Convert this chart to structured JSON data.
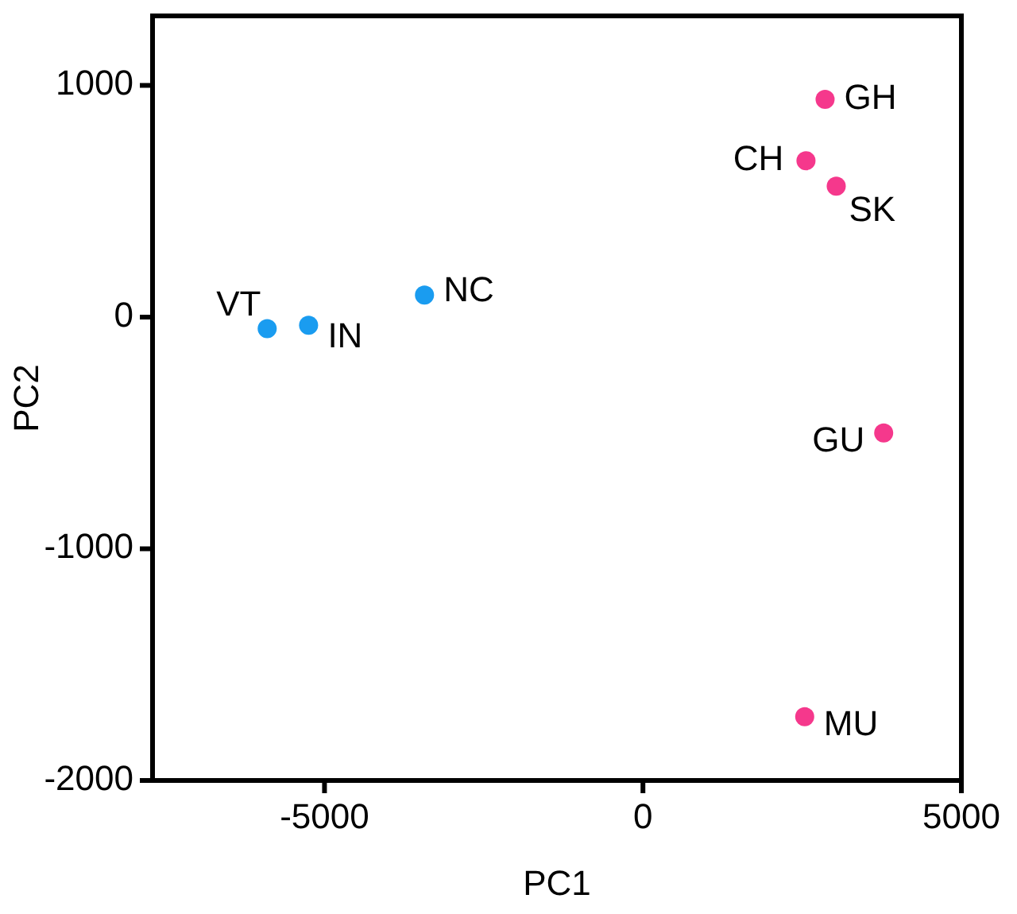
{
  "chart_data": {
    "type": "scatter",
    "xlabel": "PC1",
    "ylabel": "PC2",
    "xlim": [
      -7700,
      5000
    ],
    "ylim": [
      -2000,
      1300
    ],
    "xticks": [
      -5000,
      0,
      5000
    ],
    "yticks": [
      -2000,
      -1000,
      0,
      1000
    ],
    "marker": "circle",
    "series": [
      {
        "color": "#1a9cf0",
        "x": [
          -5900,
          -5250,
          -3430
        ],
        "values": [
          -50,
          -35,
          95
        ]
      },
      {
        "color": "#f5388c",
        "x": [
          2860,
          2560,
          3035,
          3780,
          2540
        ],
        "values": [
          940,
          675,
          565,
          -500,
          -1725
        ]
      }
    ],
    "annotations": [
      {
        "text": "VT",
        "x": -5900,
        "y": -50
      },
      {
        "text": "IN",
        "x": -5250,
        "y": -35
      },
      {
        "text": "NC",
        "x": -3430,
        "y": 95
      },
      {
        "text": "GH",
        "x": 2860,
        "y": 940
      },
      {
        "text": "CH",
        "x": 2560,
        "y": 675
      },
      {
        "text": "SK",
        "x": 3035,
        "y": 565
      },
      {
        "text": "GU",
        "x": 3780,
        "y": -500
      },
      {
        "text": "MU",
        "x": 2540,
        "y": -1725
      }
    ]
  }
}
